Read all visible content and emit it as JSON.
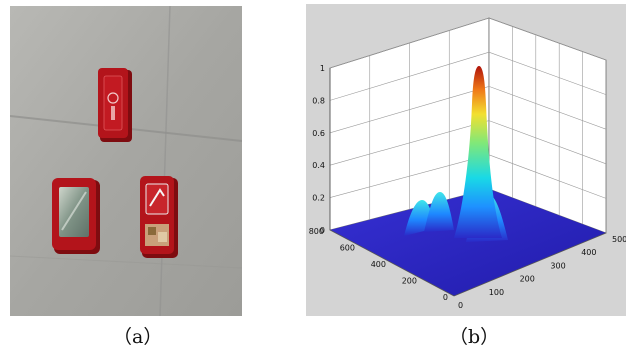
{
  "captions": {
    "a": "（a）",
    "b": "（b）"
  },
  "photo": {
    "description_icons": [
      "red-box-icon",
      "red-box-with-mirror-icon",
      "red-box-with-label-icon"
    ],
    "colors": {
      "floor": "#a9a9a5",
      "box": "#b3141b",
      "box_dark": "#7e0c10"
    }
  },
  "surface_plot": {
    "z_ticks": [
      "0",
      "0.2",
      "0.4",
      "0.6",
      "0.8",
      "1"
    ],
    "left_axis_ticks": [
      "0",
      "200",
      "400",
      "600",
      "800"
    ],
    "right_axis_ticks": [
      "0",
      "100",
      "200",
      "300",
      "400",
      "500"
    ],
    "colors": {
      "background": "#d4d4d4",
      "plane": "#2a26c8",
      "peak_top": "#b0130a",
      "grid": "#8a8a8a"
    }
  }
}
